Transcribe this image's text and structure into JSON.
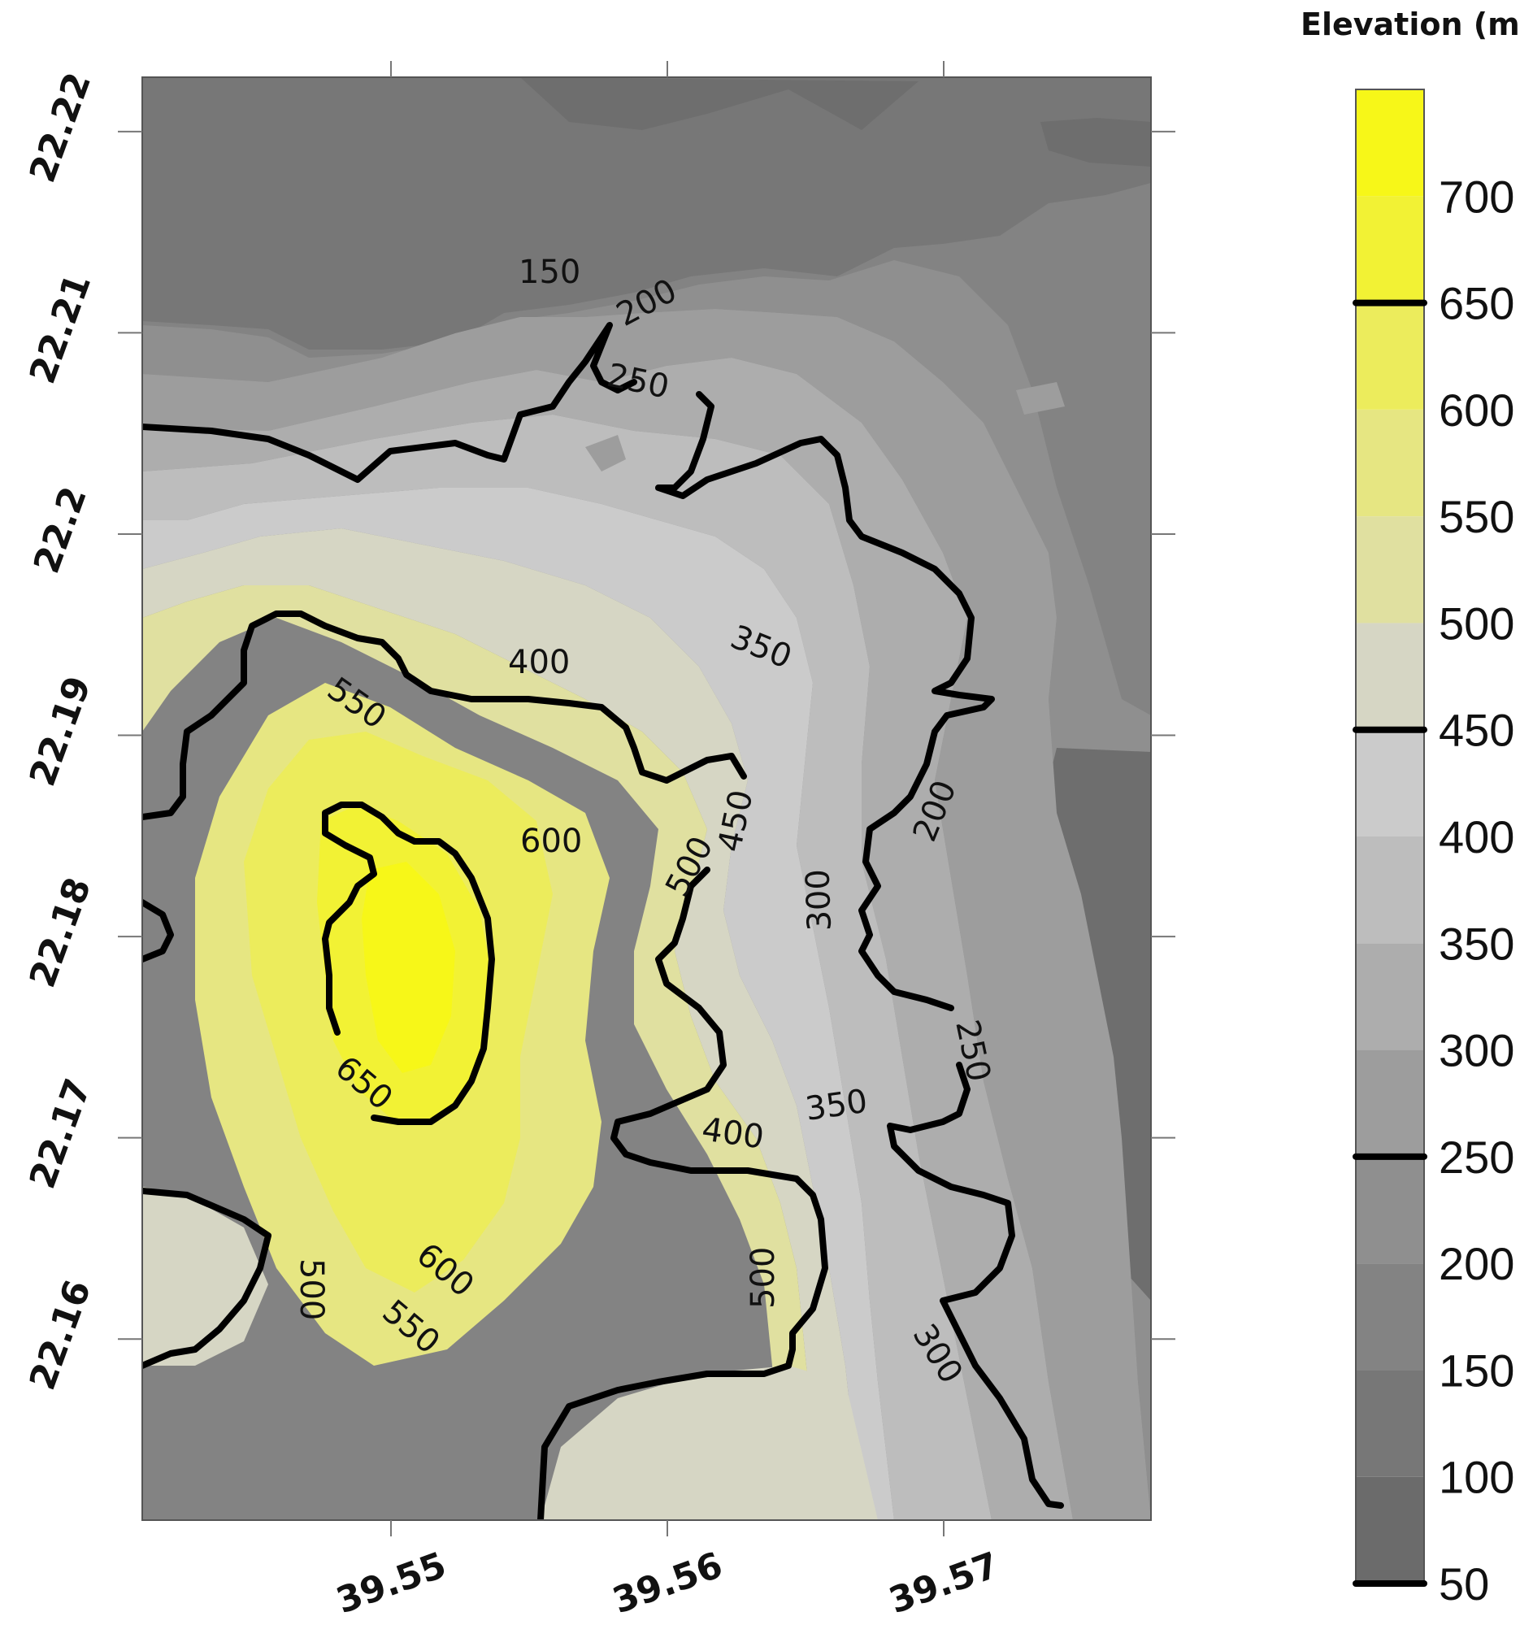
{
  "chart_data": {
    "type": "heatmap",
    "subtype": "filled contour map",
    "title": "",
    "xlabel": "",
    "ylabel": "",
    "xlim": [
      39.541,
      39.5775
    ],
    "ylim": [
      22.151,
      22.2227
    ],
    "x_ticks": [
      "39.55",
      "39.56",
      "39.57"
    ],
    "y_ticks": [
      "22.16",
      "22.17",
      "22.18",
      "22.19",
      "22.2",
      "22.21",
      "22.22"
    ],
    "colorbar": {
      "title": "Elevation (m)",
      "levels": [
        50,
        100,
        150,
        200,
        250,
        300,
        350,
        400,
        450,
        500,
        550,
        600,
        650,
        700,
        750
      ],
      "tick_labels": [
        "50",
        "100",
        "150",
        "200",
        "250",
        "300",
        "350",
        "400",
        "450",
        "500",
        "550",
        "600",
        "650",
        "700"
      ],
      "highlighted_levels": [
        50,
        250,
        450,
        650
      ],
      "colors": [
        "#6b6b6b",
        "#777777",
        "#838383",
        "#8f8f8f",
        "#9d9d9d",
        "#adadad",
        "#bdbdbd",
        "#cbcbcb",
        "#d6d6c4",
        "#e0e0a0",
        "#e6e682",
        "#ecec5c",
        "#f2f234",
        "#f7f718"
      ]
    },
    "contour_labels": [
      "150",
      "200",
      "250",
      "350",
      "400",
      "550",
      "600",
      "450",
      "500",
      "300",
      "200",
      "650",
      "250",
      "350",
      "400",
      "500",
      "600",
      "550",
      "500",
      "300"
    ],
    "highlighted_contours": [
      250,
      450,
      650
    ],
    "grid": false,
    "legend": "right"
  }
}
